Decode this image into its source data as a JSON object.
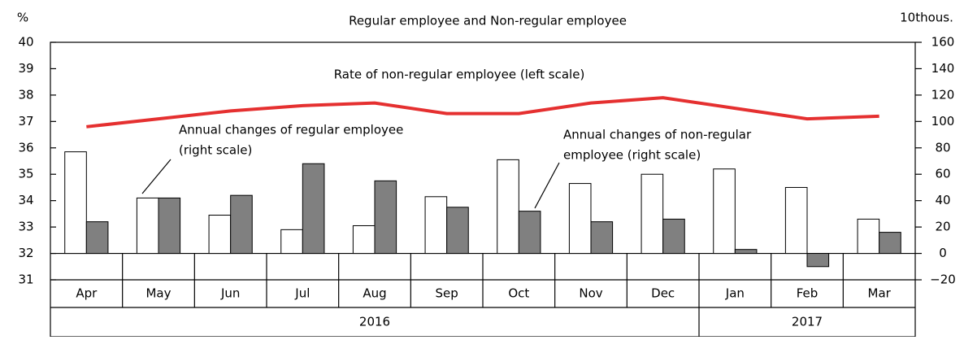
{
  "chart_data": {
    "type": "bar_line",
    "title": "Regular employee and Non-regular employee",
    "ylabel": "%",
    "y2label": "10thous.",
    "categories": [
      "Apr",
      "May",
      "Jun",
      "Jul",
      "Aug",
      "Sep",
      "Oct",
      "Nov",
      "Dec",
      "Jan",
      "Feb",
      "Mar"
    ],
    "x_groups": [
      {
        "label": "2016",
        "start": "Apr",
        "end": "Dec"
      },
      {
        "label": "2017",
        "start": "Jan",
        "end": "Mar"
      }
    ],
    "series": [
      {
        "name": "Annual changes of regular employee (right scale)",
        "type": "bar",
        "axis": "y2",
        "color": "#ffffff",
        "values": [
          77,
          42,
          29,
          18,
          21,
          43,
          71,
          53,
          60,
          64,
          50,
          26
        ]
      },
      {
        "name": "Annual changes of non-regular employee (right scale)",
        "type": "bar",
        "axis": "y2",
        "color": "#808080",
        "values": [
          24,
          42,
          44,
          68,
          55,
          35,
          32,
          24,
          26,
          3,
          -10,
          16
        ]
      },
      {
        "name": "Rate of non-regular employee (left scale)",
        "type": "line",
        "axis": "y",
        "color": "#e53030",
        "values": [
          36.8,
          37.1,
          37.4,
          37.6,
          37.7,
          37.3,
          37.3,
          37.7,
          37.9,
          37.5,
          37.1,
          37.2
        ]
      }
    ],
    "annotations": [
      {
        "series": 2,
        "text": [
          "Rate of non-regular employee (left scale)"
        ]
      },
      {
        "series": 0,
        "text": [
          "Annual changes of regular employee",
          "(right scale)"
        ]
      },
      {
        "series": 1,
        "text": [
          "Annual changes of non-regular",
          "employee (right scale)"
        ]
      }
    ],
    "ylim": [
      31,
      40
    ],
    "yticks": [
      31,
      32,
      33,
      34,
      35,
      36,
      37,
      38,
      39,
      40
    ],
    "y2lim": [
      -20,
      160
    ],
    "y2ticks": [
      {
        "value": -20,
        "label": "−20"
      },
      0,
      20,
      40,
      60,
      80,
      100,
      120,
      140,
      160
    ]
  }
}
